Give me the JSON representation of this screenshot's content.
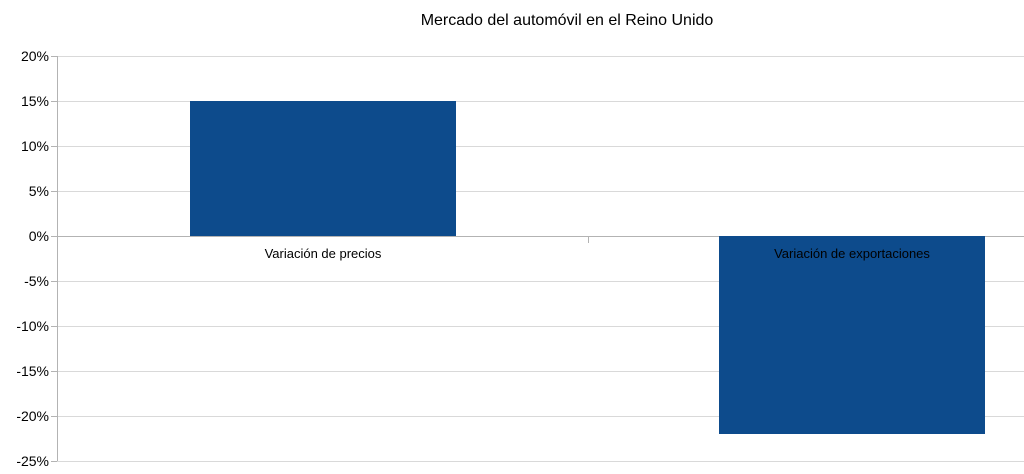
{
  "chart_data": {
    "type": "bar",
    "title": "Mercado del automóvil en el Reino Unido",
    "categories": [
      "Variación de precios",
      "Variación de exportaciones"
    ],
    "values": [
      15,
      -22
    ],
    "value_unit": "%",
    "xlabel": "",
    "ylabel": "",
    "ylim": [
      -25,
      20
    ],
    "ytick_step": 5,
    "ytick_labels": [
      "20%",
      "15%",
      "10%",
      "5%",
      "0%",
      "-5%",
      "-10%",
      "-15%",
      "-20%",
      "-25%"
    ],
    "grid": true,
    "legend_position": "none",
    "colors": {
      "bar": "#0d4b8c",
      "gridline": "#d9d9d9",
      "axis": "#b3b3b3",
      "text": "#000000",
      "background": "#ffffff"
    }
  }
}
